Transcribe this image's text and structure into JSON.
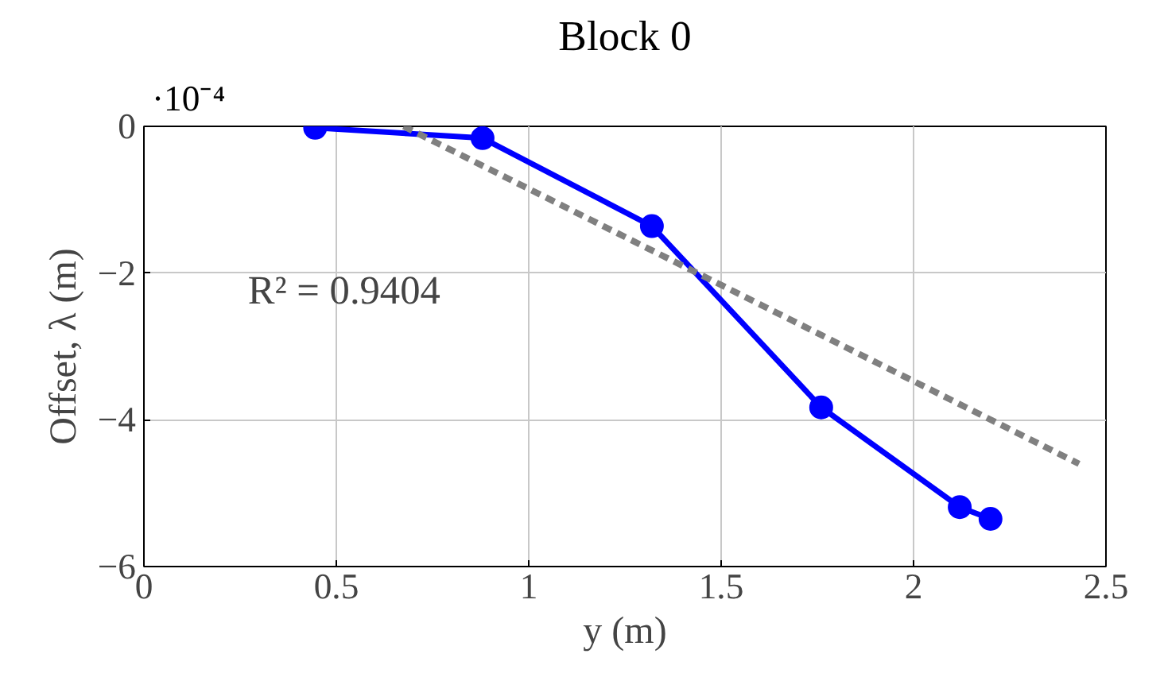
{
  "chart_data": {
    "type": "line",
    "title": "Block 0",
    "xlabel": "y (m)",
    "ylabel": "Offset, λ (m)",
    "annotations": [
      "·10⁻⁴",
      "R² = 0.9404"
    ],
    "xlim": [
      0,
      2.5
    ],
    "xticks": [
      0,
      0.5,
      1,
      1.5,
      2,
      2.5
    ],
    "ylim": [
      -6,
      0
    ],
    "yticks": [
      -6,
      -4,
      -2,
      0
    ],
    "grid": true,
    "series": [
      {
        "color": "#0000ff",
        "marker": "circle",
        "line_style": "solid",
        "x": [
          0.445,
          0.88,
          1.32,
          1.76,
          2.12,
          2.2
        ],
        "values": [
          -0.02,
          -0.16,
          -1.36,
          -3.83,
          -5.19,
          -5.35
        ]
      },
      {
        "color": "#808080",
        "marker": "none",
        "line_style": "dashed",
        "x": [
          0.675,
          2.43
        ],
        "values": [
          0,
          -4.6
        ]
      }
    ]
  }
}
